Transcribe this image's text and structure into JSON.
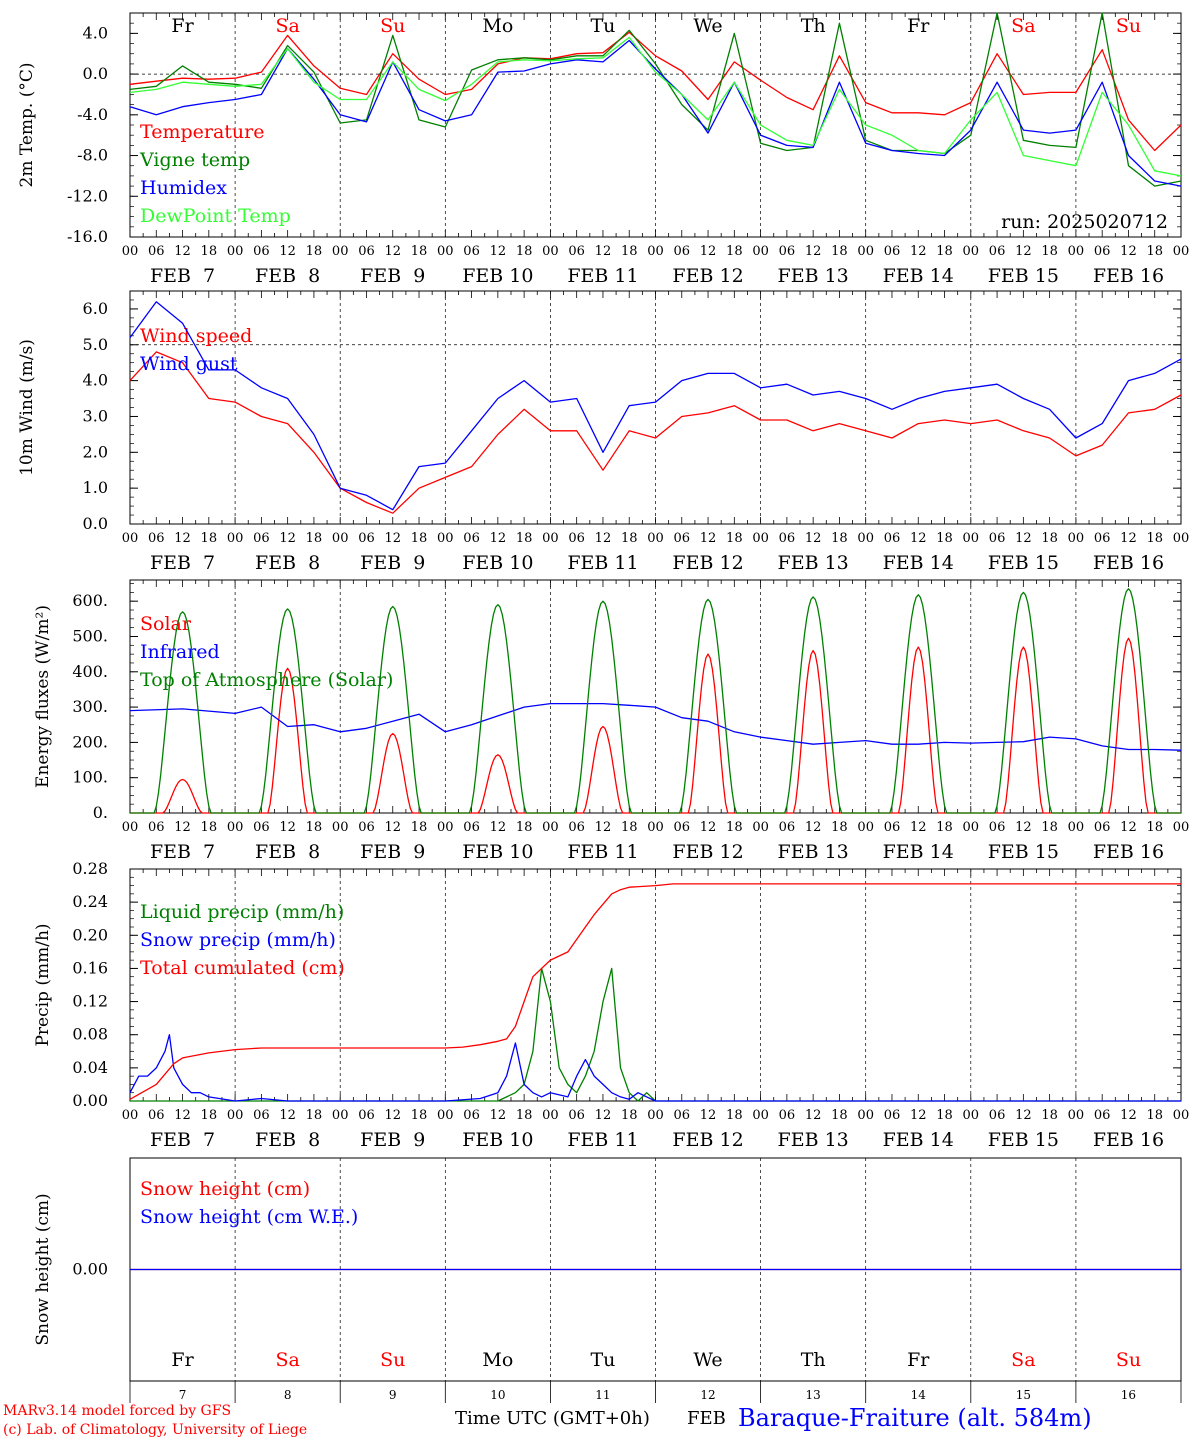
{
  "page": {
    "run_label": "run: 2025020712",
    "footer_model": "MARv3.14 model forced by GFS",
    "footer_copyright": "(c) Lab. of Climatology, University of Liege",
    "footer_axis_title": "Time UTC (GMT+0h)",
    "footer_month": "FEB",
    "footer_station": "Baraque-Fraiture (alt. 584m)"
  },
  "time_axis": {
    "hour_labels": [
      "00",
      "06",
      "12",
      "18"
    ],
    "end_label": "00",
    "dates": [
      "FEB  7",
      "FEB  8",
      "FEB  9",
      "FEB 10",
      "FEB 11",
      "FEB 12",
      "FEB 13",
      "FEB 14",
      "FEB 15",
      "FEB 16"
    ],
    "day_names": [
      "Fr",
      "Sa",
      "Su",
      "Mo",
      "Tu",
      "We",
      "Th",
      "Fr",
      "Sa",
      "Su"
    ],
    "day_numbers": [
      "7",
      "8",
      "9",
      "10",
      "11",
      "12",
      "13",
      "14",
      "15",
      "16"
    ],
    "weekend_color": "#ff0000",
    "weekday_color": "#000000"
  },
  "chart_data": [
    {
      "type": "line",
      "id": "temp",
      "ylabel": "2m Temp. (°C)",
      "ylim": [
        -16,
        6
      ],
      "yticks": [
        "4.0",
        "0.0",
        "-4.0",
        "-8.0",
        "-12.0",
        "-16.0"
      ],
      "ytick_values": [
        4,
        0,
        -4,
        -8,
        -12,
        -16
      ],
      "ref_line": 0,
      "series": [
        {
          "name": "Temperature",
          "color": "#ff0000",
          "x": [
            0,
            6,
            12,
            18,
            24,
            30,
            36,
            42,
            48,
            54,
            60,
            66,
            72,
            78,
            84,
            90,
            96,
            102,
            108,
            114,
            120,
            126,
            132,
            138,
            144,
            150,
            156,
            162,
            168,
            174,
            180,
            186,
            192,
            198,
            204,
            210,
            216,
            222,
            228,
            234,
            240
          ],
          "values": [
            -1.0,
            -0.7,
            -0.4,
            -0.5,
            -0.4,
            0.2,
            3.8,
            0.8,
            -1.4,
            -2.0,
            2.0,
            -0.5,
            -2.0,
            -1.5,
            1.0,
            1.6,
            1.5,
            2.0,
            2.1,
            4.1,
            1.8,
            0.3,
            -2.5,
            1.2,
            -0.6,
            -2.3,
            -3.5,
            1.8,
            -2.8,
            -3.8,
            -3.8,
            -4.0,
            -2.8,
            2.0,
            -2.0,
            -1.8,
            -1.8,
            2.4,
            -4.5,
            -7.5,
            -5.0
          ]
        },
        {
          "name": "Vigne temp",
          "color": "#008000",
          "x": [
            0,
            6,
            12,
            18,
            24,
            30,
            36,
            42,
            48,
            54,
            60,
            66,
            72,
            78,
            84,
            90,
            96,
            102,
            108,
            114,
            120,
            126,
            132,
            138,
            144,
            150,
            156,
            162,
            168,
            174,
            180,
            186,
            192,
            198,
            204,
            210,
            216,
            222,
            228,
            234,
            240
          ],
          "values": [
            -1.5,
            -1.2,
            0.8,
            -0.8,
            -1.0,
            -1.4,
            2.8,
            0.2,
            -4.8,
            -4.5,
            3.8,
            -4.5,
            -5.2,
            0.4,
            1.4,
            1.6,
            1.4,
            1.8,
            1.8,
            4.3,
            1.0,
            -3.0,
            -5.5,
            4.0,
            -6.8,
            -7.5,
            -7.2,
            5.0,
            -6.5,
            -7.5,
            -7.5,
            -7.8,
            -6.0,
            6.0,
            -6.5,
            -7.0,
            -7.2,
            6.0,
            -9.0,
            -11.0,
            -10.5
          ]
        },
        {
          "name": "Humidex",
          "color": "#0000ff",
          "x": [
            0,
            6,
            12,
            18,
            24,
            30,
            36,
            42,
            48,
            54,
            60,
            66,
            72,
            78,
            84,
            90,
            96,
            102,
            108,
            114,
            120,
            126,
            132,
            138,
            144,
            150,
            156,
            162,
            168,
            174,
            180,
            186,
            192,
            198,
            204,
            210,
            216,
            222,
            228,
            234,
            240
          ],
          "values": [
            -3.2,
            -4.0,
            -3.2,
            -2.8,
            -2.5,
            -2.0,
            2.5,
            -0.5,
            -4.0,
            -4.7,
            1.2,
            -3.5,
            -4.6,
            -4.0,
            0.2,
            0.3,
            1.0,
            1.4,
            1.2,
            3.3,
            0.5,
            -2.0,
            -5.8,
            -0.8,
            -6.0,
            -7.0,
            -7.2,
            -0.8,
            -6.8,
            -7.5,
            -7.8,
            -8.0,
            -5.5,
            -0.8,
            -5.5,
            -5.8,
            -5.5,
            -0.8,
            -8.0,
            -10.5,
            -11.0
          ]
        },
        {
          "name": "DewPoint Temp",
          "color": "#33ff33",
          "x": [
            0,
            6,
            12,
            18,
            24,
            30,
            36,
            42,
            48,
            54,
            60,
            66,
            72,
            78,
            84,
            90,
            96,
            102,
            108,
            114,
            120,
            126,
            132,
            138,
            144,
            150,
            156,
            162,
            168,
            174,
            180,
            186,
            192,
            198,
            204,
            210,
            216,
            222,
            228,
            234,
            240
          ],
          "values": [
            -1.8,
            -1.5,
            -0.8,
            -1.0,
            -1.2,
            -1.0,
            2.5,
            -0.8,
            -2.5,
            -2.5,
            1.2,
            -1.5,
            -2.6,
            -1.0,
            1.2,
            1.4,
            1.3,
            1.5,
            1.6,
            3.6,
            0.2,
            -2.0,
            -4.5,
            -0.8,
            -5.0,
            -6.5,
            -7.0,
            -1.5,
            -5.0,
            -6.0,
            -7.5,
            -7.8,
            -4.5,
            -1.8,
            -8.0,
            -8.5,
            -9.0,
            -1.8,
            -5.0,
            -9.5,
            -10.0
          ]
        }
      ]
    },
    {
      "type": "line",
      "id": "wind",
      "ylabel": "10m Wind (m/s)",
      "ylim": [
        0,
        6.5
      ],
      "yticks": [
        "6.0",
        "5.0",
        "4.0",
        "3.0",
        "2.0",
        "1.0",
        "0.0"
      ],
      "ytick_values": [
        6,
        5,
        4,
        3,
        2,
        1,
        0
      ],
      "ref_line": 5,
      "series": [
        {
          "name": "Wind speed",
          "color": "#ff0000",
          "x": [
            0,
            6,
            12,
            18,
            24,
            30,
            36,
            42,
            48,
            54,
            60,
            66,
            72,
            78,
            84,
            90,
            96,
            102,
            108,
            114,
            120,
            126,
            132,
            138,
            144,
            150,
            156,
            162,
            168,
            174,
            180,
            186,
            192,
            198,
            204,
            210,
            216,
            222,
            228,
            234,
            240
          ],
          "values": [
            4.0,
            4.8,
            4.5,
            3.5,
            3.4,
            3.0,
            2.8,
            2.0,
            1.0,
            0.6,
            0.3,
            1.0,
            1.3,
            1.6,
            2.5,
            3.2,
            2.6,
            2.6,
            1.5,
            2.6,
            2.4,
            3.0,
            3.1,
            3.3,
            2.9,
            2.9,
            2.6,
            2.8,
            2.6,
            2.4,
            2.8,
            2.9,
            2.8,
            2.9,
            2.6,
            2.4,
            1.9,
            2.2,
            3.1,
            3.2,
            3.6
          ]
        },
        {
          "name": "Wind gust",
          "color": "#0000ff",
          "x": [
            0,
            6,
            12,
            18,
            24,
            30,
            36,
            42,
            48,
            54,
            60,
            66,
            72,
            78,
            84,
            90,
            96,
            102,
            108,
            114,
            120,
            126,
            132,
            138,
            144,
            150,
            156,
            162,
            168,
            174,
            180,
            186,
            192,
            198,
            204,
            210,
            216,
            222,
            228,
            234,
            240
          ],
          "values": [
            5.2,
            6.2,
            5.6,
            4.3,
            4.3,
            3.8,
            3.5,
            2.5,
            1.0,
            0.8,
            0.4,
            1.6,
            1.7,
            2.6,
            3.5,
            4.0,
            3.4,
            3.5,
            2.0,
            3.3,
            3.4,
            4.0,
            4.2,
            4.2,
            3.8,
            3.9,
            3.6,
            3.7,
            3.5,
            3.2,
            3.5,
            3.7,
            3.8,
            3.9,
            3.5,
            3.2,
            2.4,
            2.8,
            4.0,
            4.2,
            4.6
          ]
        }
      ]
    },
    {
      "type": "line",
      "id": "energy",
      "ylabel": "Energy fluxes (W/m²)",
      "ylim": [
        0,
        660
      ],
      "yticks": [
        "600.",
        "500.",
        "400.",
        "300.",
        "200.",
        "100.",
        "0."
      ],
      "ytick_values": [
        600,
        500,
        400,
        300,
        200,
        100,
        0
      ],
      "series": [
        {
          "name": "Solar",
          "color": "#ff0000",
          "peaks": [
            95,
            410,
            225,
            165,
            245,
            450,
            460,
            470,
            470,
            495
          ]
        },
        {
          "name": "Infrared",
          "color": "#0000ff",
          "x": [
            0,
            12,
            24,
            30,
            36,
            42,
            48,
            54,
            60,
            66,
            72,
            78,
            84,
            90,
            96,
            102,
            108,
            114,
            120,
            126,
            132,
            138,
            144,
            150,
            156,
            162,
            168,
            174,
            180,
            186,
            192,
            198,
            204,
            210,
            216,
            222,
            228,
            234,
            240
          ],
          "values": [
            290,
            295,
            282,
            300,
            245,
            250,
            230,
            240,
            260,
            280,
            230,
            250,
            275,
            300,
            310,
            310,
            310,
            305,
            300,
            270,
            260,
            230,
            215,
            205,
            195,
            200,
            205,
            195,
            195,
            200,
            198,
            200,
            202,
            215,
            210,
            190,
            180,
            180,
            178
          ]
        },
        {
          "name": "Top of Atmosphere (Solar)",
          "color": "#008000",
          "peaks": [
            570,
            578,
            585,
            590,
            600,
            605,
            612,
            618,
            625,
            635
          ]
        }
      ]
    },
    {
      "type": "line",
      "id": "precip",
      "ylabel": "Precip (mm/h)",
      "ylim": [
        0,
        0.28
      ],
      "yticks": [
        "0.28",
        "0.24",
        "0.20",
        "0.16",
        "0.12",
        "0.08",
        "0.04",
        "0.00"
      ],
      "ytick_values": [
        0.28,
        0.24,
        0.2,
        0.16,
        0.12,
        0.08,
        0.04,
        0.0
      ],
      "series": [
        {
          "name": "Liquid precip (mm/h)",
          "color": "#008000",
          "x": [
            0,
            84,
            88,
            90,
            92,
            94,
            96,
            98,
            100,
            102,
            104,
            106,
            108,
            110,
            112,
            114,
            116,
            118,
            120,
            240
          ],
          "values": [
            0,
            0,
            0.01,
            0.02,
            0.06,
            0.16,
            0.12,
            0.04,
            0.02,
            0.01,
            0.03,
            0.06,
            0.12,
            0.16,
            0.04,
            0.01,
            0.0,
            0.01,
            0.0,
            0.0
          ]
        },
        {
          "name": "Snow precip (mm/h)",
          "color": "#0000ff",
          "x": [
            0,
            2,
            4,
            6,
            8,
            9,
            10,
            12,
            14,
            16,
            18,
            24,
            30,
            36,
            72,
            80,
            84,
            86,
            88,
            90,
            92,
            94,
            96,
            100,
            102,
            104,
            106,
            108,
            110,
            112,
            114,
            116,
            118,
            120,
            240
          ],
          "values": [
            0.01,
            0.03,
            0.03,
            0.04,
            0.06,
            0.08,
            0.04,
            0.02,
            0.01,
            0.01,
            0.005,
            0.0,
            0.003,
            0.0,
            0.0,
            0.003,
            0.01,
            0.03,
            0.07,
            0.02,
            0.01,
            0.005,
            0.01,
            0.005,
            0.03,
            0.05,
            0.03,
            0.02,
            0.01,
            0.005,
            0.002,
            0.01,
            0.005,
            0.0,
            0.0
          ]
        },
        {
          "name": "Total cumulated (cm)",
          "color": "#ff0000",
          "x": [
            0,
            6,
            10,
            12,
            18,
            24,
            30,
            60,
            72,
            76,
            80,
            84,
            86,
            88,
            90,
            92,
            96,
            100,
            104,
            106,
            110,
            112,
            114,
            120,
            124,
            240
          ],
          "values": [
            0.002,
            0.02,
            0.045,
            0.052,
            0.058,
            0.062,
            0.064,
            0.064,
            0.064,
            0.065,
            0.068,
            0.072,
            0.075,
            0.09,
            0.12,
            0.15,
            0.17,
            0.18,
            0.21,
            0.225,
            0.25,
            0.255,
            0.258,
            0.26,
            0.262,
            0.262
          ]
        }
      ]
    },
    {
      "type": "line",
      "id": "snow",
      "ylabel": "Snow height (cm)",
      "ylim": [
        -1,
        1
      ],
      "yticks": [
        "0.00"
      ],
      "ytick_values": [
        0
      ],
      "series": [
        {
          "name": "Snow height (cm)",
          "color": "#ff0000",
          "x": [
            0,
            240
          ],
          "values": [
            0,
            0
          ]
        },
        {
          "name": "Snow height (cm W.E.)",
          "color": "#0000ff",
          "x": [
            0,
            240
          ],
          "values": [
            0,
            0
          ]
        }
      ]
    }
  ]
}
